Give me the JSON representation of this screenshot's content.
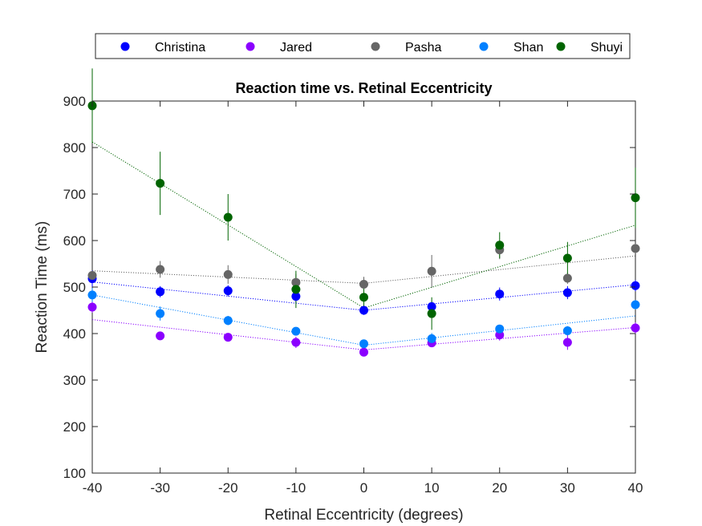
{
  "chart_data": {
    "type": "scatter",
    "title": "Reaction time vs. Retinal Eccentricity",
    "xlabel": "Retinal Eccentricity (degrees)",
    "ylabel": "Reaction Time (ms)",
    "xlim": [
      -40,
      40
    ],
    "ylim": [
      100,
      900
    ],
    "xticks": [
      "-40",
      "-30",
      "-20",
      "-10",
      "0",
      "10",
      "20",
      "30",
      "40"
    ],
    "yticks": [
      "100",
      "200",
      "300",
      "400",
      "500",
      "600",
      "700",
      "800",
      "900"
    ],
    "grid": false,
    "legend_position": "top, outside, horizontal",
    "x": [
      -40,
      -30,
      -20,
      -10,
      0,
      10,
      20,
      30,
      40
    ],
    "series": [
      {
        "name": "Christina",
        "color": "#0000ff",
        "values": [
          518,
          490,
          492,
          480,
          450,
          458,
          485,
          488,
          503
        ],
        "errors": [
          18,
          12,
          12,
          15,
          10,
          12,
          14,
          14,
          12
        ],
        "fit": {
          "left": [
            511,
            450
          ],
          "right": [
            450,
            505
          ]
        }
      },
      {
        "name": "Jared",
        "color": "#8b00ff",
        "values": [
          457,
          395,
          392,
          381,
          360,
          380,
          397,
          381,
          412
        ],
        "errors": [
          12,
          8,
          8,
          12,
          8,
          8,
          12,
          16,
          12
        ],
        "fit": {
          "left": [
            430,
            365
          ],
          "right": [
            365,
            413
          ]
        }
      },
      {
        "name": "Pasha",
        "color": "#666666",
        "values": [
          525,
          538,
          527,
          510,
          506,
          534,
          580,
          519,
          583
        ],
        "errors": [
          10,
          18,
          20,
          18,
          16,
          35,
          20,
          12,
          10
        ],
        "fit": {
          "left": [
            535,
            508
          ],
          "right": [
            508,
            567
          ]
        }
      },
      {
        "name": "Shan",
        "color": "#0080ff",
        "values": [
          483,
          443,
          428,
          405,
          378,
          389,
          410,
          406,
          462
        ],
        "errors": [
          15,
          15,
          10,
          8,
          8,
          12,
          8,
          10,
          10
        ],
        "fit": {
          "left": [
            483,
            375
          ],
          "right": [
            375,
            438
          ]
        }
      },
      {
        "name": "Shuyi",
        "color": "#006400",
        "values": [
          890,
          723,
          650,
          495,
          478,
          443,
          590,
          562,
          692
        ],
        "errors": [
          80,
          68,
          50,
          40,
          22,
          35,
          28,
          35,
          65
        ],
        "fit": {
          "left": [
            812,
            455
          ],
          "right": [
            455,
            633
          ]
        }
      }
    ]
  }
}
